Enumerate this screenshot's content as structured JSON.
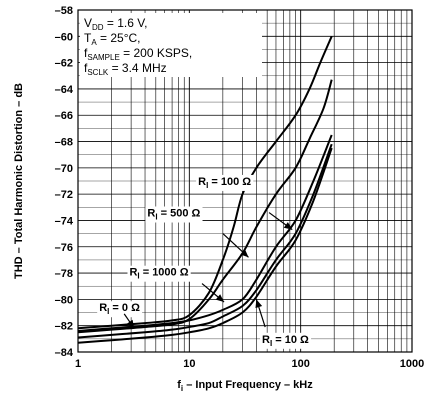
{
  "chart_data": {
    "type": "line",
    "xscale": "log",
    "xlim": [
      1,
      1000
    ],
    "ylim": [
      -84,
      -58
    ],
    "grid": true,
    "xlabel": {
      "prefix": "f",
      "sub": "i",
      "suffix": " – Input Frequency – kHz"
    },
    "ylabel": "THD – Total Harmonic Distortion – dB",
    "xticks": [
      {
        "value": 1,
        "label": "1"
      },
      {
        "value": 10,
        "label": "10"
      },
      {
        "value": 100,
        "label": "100"
      },
      {
        "value": 1000,
        "label": "1000"
      }
    ],
    "yticks": [
      {
        "value": -58,
        "label": "–58"
      },
      {
        "value": -60,
        "label": "–60"
      },
      {
        "value": -62,
        "label": "–62"
      },
      {
        "value": -64,
        "label": "–64"
      },
      {
        "value": -66,
        "label": "–66"
      },
      {
        "value": -68,
        "label": "–68"
      },
      {
        "value": -70,
        "label": "–70"
      },
      {
        "value": -72,
        "label": "–72"
      },
      {
        "value": -74,
        "label": "–74"
      },
      {
        "value": -76,
        "label": "–76"
      },
      {
        "value": -78,
        "label": "–78"
      },
      {
        "value": -80,
        "label": "–80"
      },
      {
        "value": -82,
        "label": "–82"
      },
      {
        "value": -84,
        "label": "–84"
      }
    ],
    "conditions": [
      {
        "main": "V",
        "sub": "DD",
        "rest": " = 1.6 V,"
      },
      {
        "main": "T",
        "sub": "A",
        "rest": " = 25°C,"
      },
      {
        "main": "f",
        "sub": "SAMPLE",
        "rest": " = 200 KSPS,"
      },
      {
        "main": "f",
        "sub": "SCLK",
        "rest": " = 3.4 MHz"
      }
    ],
    "series": [
      {
        "name": "100 Ω",
        "points": [
          [
            1,
            -82.2
          ],
          [
            2,
            -82.0
          ],
          [
            4,
            -81.8
          ],
          [
            7,
            -81.6
          ],
          [
            10,
            -81.2
          ],
          [
            15,
            -79.5
          ],
          [
            20,
            -77.0
          ],
          [
            25,
            -74.5
          ],
          [
            30,
            -72.0
          ],
          [
            40,
            -70.0
          ],
          [
            60,
            -68.0
          ],
          [
            90,
            -66.0
          ],
          [
            120,
            -64.0
          ],
          [
            150,
            -62.0
          ],
          [
            190,
            -60.0
          ]
        ]
      },
      {
        "name": "500 Ω",
        "points": [
          [
            1,
            -82.5
          ],
          [
            2,
            -82.3
          ],
          [
            4,
            -82.1
          ],
          [
            7,
            -81.9
          ],
          [
            10,
            -81.5
          ],
          [
            15,
            -80.0
          ],
          [
            20,
            -78.5
          ],
          [
            30,
            -76.5
          ],
          [
            40,
            -74.5
          ],
          [
            60,
            -72.0
          ],
          [
            90,
            -70.0
          ],
          [
            120,
            -67.8
          ],
          [
            160,
            -65.5
          ],
          [
            190,
            -63.3
          ]
        ]
      },
      {
        "name": "1000 Ω",
        "points": [
          [
            1,
            -82.4
          ],
          [
            2,
            -82.2
          ],
          [
            4,
            -82.0
          ],
          [
            7,
            -81.8
          ],
          [
            10,
            -81.6
          ],
          [
            15,
            -81.2
          ],
          [
            20,
            -80.8
          ],
          [
            30,
            -80.0
          ],
          [
            40,
            -78.5
          ],
          [
            60,
            -76.0
          ],
          [
            90,
            -74.0
          ],
          [
            130,
            -71.0
          ],
          [
            190,
            -67.5
          ]
        ]
      },
      {
        "name": "0 Ω",
        "points": [
          [
            1,
            -82.9
          ],
          [
            2,
            -82.7
          ],
          [
            4,
            -82.5
          ],
          [
            7,
            -82.3
          ],
          [
            10,
            -82.1
          ],
          [
            15,
            -81.8
          ],
          [
            20,
            -81.3
          ],
          [
            30,
            -80.5
          ],
          [
            40,
            -79.3
          ],
          [
            60,
            -77.0
          ],
          [
            90,
            -75.0
          ],
          [
            130,
            -72.0
          ],
          [
            190,
            -68.2
          ]
        ]
      },
      {
        "name": "10 Ω",
        "points": [
          [
            1,
            -83.3
          ],
          [
            2,
            -83.1
          ],
          [
            4,
            -82.9
          ],
          [
            7,
            -82.7
          ],
          [
            10,
            -82.5
          ],
          [
            15,
            -82.2
          ],
          [
            20,
            -81.8
          ],
          [
            30,
            -81.0
          ],
          [
            40,
            -79.8
          ],
          [
            60,
            -77.5
          ],
          [
            90,
            -75.5
          ],
          [
            130,
            -72.5
          ],
          [
            190,
            -68.5
          ]
        ]
      }
    ],
    "annotations": [
      {
        "label": {
          "main": "R",
          "sub": "I",
          "rest": " = 100 Ω"
        },
        "text_at": [
          12,
          -71.3
        ],
        "arrow_from": [
          52,
          -73.4
        ],
        "arrow_to": [
          84,
          -74.7
        ]
      },
      {
        "label": {
          "main": "R",
          "sub": "I",
          "rest": " = 500 Ω"
        },
        "text_at": [
          4.2,
          -73.7
        ],
        "arrow_from": [
          20,
          -75.0
        ],
        "arrow_to": [
          34,
          -76.8
        ]
      },
      {
        "label": {
          "main": "R",
          "sub": "I",
          "rest": " = 1000 Ω"
        },
        "text_at": [
          2.9,
          -78.2
        ],
        "arrow_from": [
          13,
          -78.8
        ],
        "arrow_to": [
          20.5,
          -80.2
        ]
      },
      {
        "label": {
          "main": "R",
          "sub": "I",
          "rest": " = 0 Ω"
        },
        "text_at": [
          1.55,
          -80.9
        ],
        "arrow_from": [
          2.6,
          -81.1
        ],
        "arrow_to": [
          3.2,
          -82.2
        ]
      },
      {
        "label": {
          "main": "R",
          "sub": "I",
          "rest": " = 10 Ω"
        },
        "text_at": [
          45,
          -83.3
        ],
        "arrow_from": [
          48,
          -82.1
        ],
        "arrow_to": [
          40,
          -80.0
        ]
      }
    ]
  }
}
